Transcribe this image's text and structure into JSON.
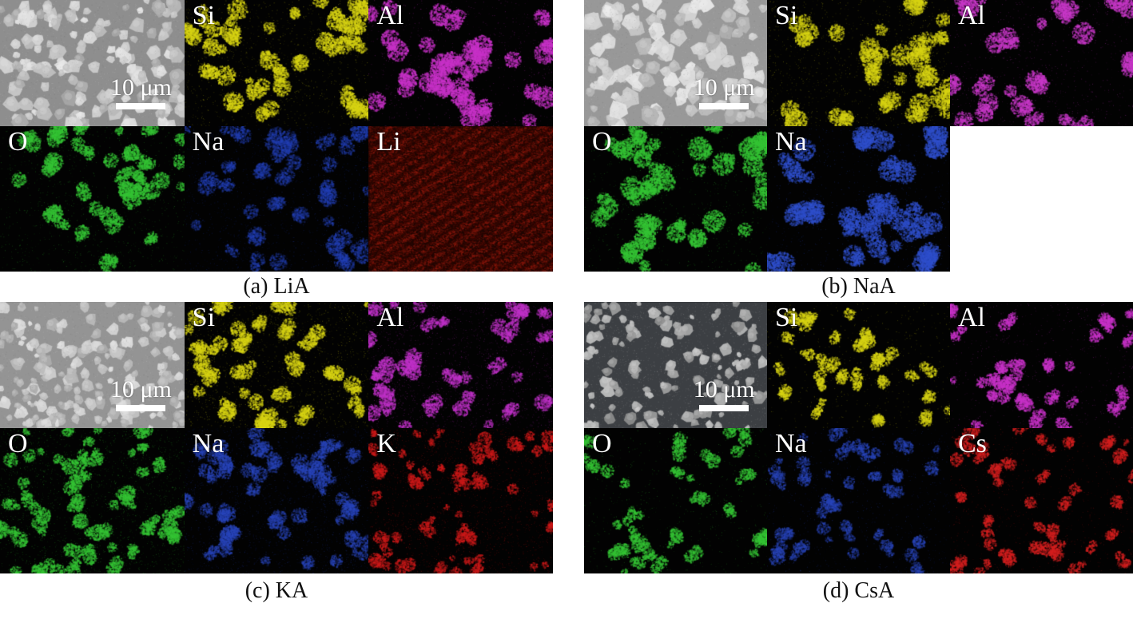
{
  "scale_bar": {
    "text": "10 μm"
  },
  "panels": [
    {
      "id": "a",
      "caption": "(a) LiA",
      "tiles": [
        {
          "type": "sem",
          "bg": "#8e8e8e",
          "pmin": 165,
          "pmax": 232,
          "count": 150,
          "rmin": 4,
          "rmax": 11,
          "seed": 11
        },
        {
          "label": "Si",
          "type": "map",
          "color": "#d8d414",
          "clusters": 30,
          "rmin": 5,
          "rmax": 13,
          "alpha": 0.6,
          "speckle": 0.03,
          "seed": 12
        },
        {
          "label": "Al",
          "type": "map",
          "color": "#c832c8",
          "clusters": 28,
          "rmin": 6,
          "rmax": 14,
          "alpha": 0.6,
          "speckle": 0.02,
          "seed": 13
        },
        {
          "label": "O",
          "type": "map",
          "color": "#35c435",
          "clusters": 30,
          "rmin": 5,
          "rmax": 12,
          "alpha": 0.6,
          "speckle": 0.025,
          "seed": 14
        },
        {
          "label": "Na",
          "type": "map",
          "color": "#2440b4",
          "clusters": 30,
          "rmin": 5,
          "rmax": 12,
          "alpha": 0.4,
          "speckle": 0.035,
          "seed": 15
        },
        {
          "label": "Li",
          "type": "uniform",
          "color": "#9a1c10",
          "seed": 16
        }
      ]
    },
    {
      "id": "b",
      "caption": "(b) NaA",
      "tiles": [
        {
          "type": "sem",
          "bg": "#989898",
          "pmin": 175,
          "pmax": 235,
          "count": 115,
          "rmin": 5,
          "rmax": 13,
          "seed": 21
        },
        {
          "label": "Si",
          "type": "map",
          "color": "#d8d414",
          "clusters": 26,
          "rmin": 6,
          "rmax": 14,
          "alpha": 0.55,
          "speckle": 0.03,
          "seed": 22
        },
        {
          "label": "Al",
          "type": "map",
          "color": "#c838c8",
          "clusters": 24,
          "rmin": 7,
          "rmax": 15,
          "alpha": 0.6,
          "speckle": 0.02,
          "seed": 23
        },
        {
          "label": "O",
          "type": "map",
          "color": "#35c435",
          "clusters": 24,
          "rmin": 7,
          "rmax": 15,
          "alpha": 0.62,
          "speckle": 0.018,
          "seed": 24
        },
        {
          "label": "Na",
          "type": "map",
          "color": "#3050cc",
          "clusters": 26,
          "rmin": 7,
          "rmax": 15,
          "alpha": 0.55,
          "speckle": 0.018,
          "seed": 25
        }
      ]
    },
    {
      "id": "c",
      "caption": "(c) KA",
      "tiles": [
        {
          "type": "sem",
          "bg": "#949494",
          "pmin": 170,
          "pmax": 226,
          "count": 195,
          "rmin": 3,
          "rmax": 9,
          "seed": 31
        },
        {
          "label": "Si",
          "type": "map",
          "color": "#d8d414",
          "clusters": 42,
          "rmin": 4,
          "rmax": 11,
          "alpha": 0.6,
          "speckle": 0.045,
          "seed": 32
        },
        {
          "label": "Al",
          "type": "map",
          "color": "#c032c8",
          "clusters": 40,
          "rmin": 4,
          "rmax": 11,
          "alpha": 0.55,
          "speckle": 0.045,
          "seed": 33
        },
        {
          "label": "O",
          "type": "map",
          "color": "#35c435",
          "clusters": 46,
          "rmin": 4,
          "rmax": 10,
          "alpha": 0.6,
          "speckle": 0.05,
          "seed": 34
        },
        {
          "label": "Na",
          "type": "map",
          "color": "#2a46bb",
          "clusters": 40,
          "rmin": 4,
          "rmax": 11,
          "alpha": 0.45,
          "speckle": 0.05,
          "seed": 35
        },
        {
          "label": "K",
          "type": "map",
          "color": "#cc1a1a",
          "clusters": 52,
          "rmin": 3,
          "rmax": 9,
          "alpha": 0.55,
          "speckle": 0.06,
          "seed": 36
        }
      ]
    },
    {
      "id": "d",
      "caption": "(d) CsA",
      "tiles": [
        {
          "type": "sem",
          "bg": "#3c3f43",
          "pmin": 140,
          "pmax": 198,
          "count": 125,
          "rmin": 3,
          "rmax": 9,
          "seed": 41
        },
        {
          "label": "Si",
          "type": "map",
          "color": "#d8d414",
          "clusters": 36,
          "rmin": 4,
          "rmax": 9,
          "alpha": 0.6,
          "speckle": 0.015,
          "seed": 42
        },
        {
          "label": "Al",
          "type": "map",
          "color": "#c832c8",
          "clusters": 36,
          "rmin": 4,
          "rmax": 9,
          "alpha": 0.6,
          "speckle": 0.015,
          "seed": 43
        },
        {
          "label": "O",
          "type": "map",
          "color": "#35c435",
          "clusters": 36,
          "rmin": 4,
          "rmax": 9,
          "alpha": 0.6,
          "speckle": 0.015,
          "seed": 44
        },
        {
          "label": "Na",
          "type": "map",
          "color": "#2a46bb",
          "clusters": 34,
          "rmin": 4,
          "rmax": 9,
          "alpha": 0.45,
          "speckle": 0.02,
          "seed": 45
        },
        {
          "label": "Cs",
          "type": "map",
          "color": "#d42020",
          "clusters": 40,
          "rmin": 4,
          "rmax": 9,
          "alpha": 0.55,
          "speckle": 0.02,
          "seed": 46
        }
      ]
    }
  ]
}
